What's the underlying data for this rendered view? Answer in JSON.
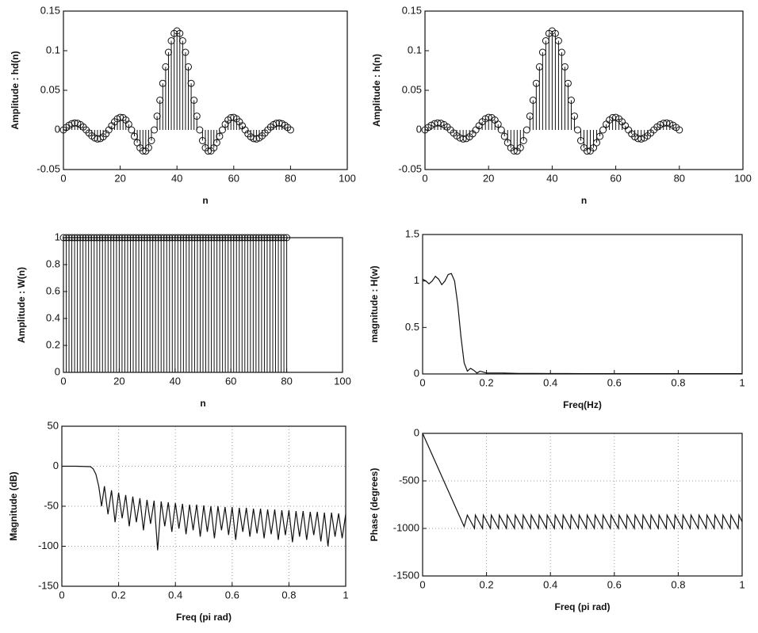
{
  "chart_data": [
    {
      "type": "stem",
      "xlabel": "n",
      "ylabel": "Amplitude : hd(n)",
      "color": "#111111",
      "x": [
        0,
        1,
        2,
        3,
        4,
        5,
        6,
        7,
        8,
        9,
        10,
        11,
        12,
        13,
        14,
        15,
        16,
        17,
        18,
        19,
        20,
        21,
        22,
        23,
        24,
        25,
        26,
        27,
        28,
        29,
        30,
        31,
        32,
        33,
        34,
        35,
        36,
        37,
        38,
        39,
        40,
        41,
        42,
        43,
        44,
        45,
        46,
        47,
        48,
        49,
        50,
        51,
        52,
        53,
        54,
        55,
        56,
        57,
        58,
        59,
        60,
        61,
        62,
        63,
        64,
        65,
        66,
        67,
        68,
        69,
        70,
        71,
        72,
        73,
        74,
        75,
        76,
        77,
        78,
        79,
        80
      ],
      "values": [
        0,
        0.0031,
        0.0059,
        0.0079,
        0.0088,
        0.0084,
        0.0066,
        0.0037,
        0,
        -0.0039,
        -0.0075,
        -0.0101,
        -0.0114,
        -0.0109,
        -0.0087,
        -0.0049,
        0,
        0.0053,
        0.0102,
        0.014,
        0.0159,
        0.0155,
        0.0125,
        0.0072,
        0,
        -0.0081,
        -0.0161,
        -0.0226,
        -0.0265,
        -0.0267,
        -0.0225,
        -0.0135,
        0,
        0.0174,
        0.0375,
        0.0588,
        0.0796,
        0.098,
        0.1125,
        0.1218,
        0.125,
        0.1218,
        0.1125,
        0.098,
        0.0796,
        0.0588,
        0.0375,
        0.0174,
        0,
        -0.0135,
        -0.0225,
        -0.0267,
        -0.0265,
        -0.0226,
        -0.0161,
        -0.0081,
        0,
        0.0072,
        0.0125,
        0.0155,
        0.0159,
        0.014,
        0.0102,
        0.0053,
        0,
        -0.0049,
        -0.0087,
        -0.0109,
        -0.0114,
        -0.0101,
        -0.0075,
        -0.0039,
        0,
        0.0037,
        0.0066,
        0.0084,
        0.0088,
        0.0079,
        0.0059,
        0.0031,
        0
      ],
      "xlim": [
        0,
        100
      ],
      "ylim": [
        -0.05,
        0.15
      ],
      "xticks": [
        0,
        20,
        40,
        60,
        80,
        100
      ],
      "yticks": [
        -0.05,
        0,
        0.05,
        0.1,
        0.15
      ],
      "grid": false
    },
    {
      "type": "stem",
      "xlabel": "n",
      "ylabel": "Amplitude : h(n)",
      "color": "#111111",
      "x": [
        0,
        1,
        2,
        3,
        4,
        5,
        6,
        7,
        8,
        9,
        10,
        11,
        12,
        13,
        14,
        15,
        16,
        17,
        18,
        19,
        20,
        21,
        22,
        23,
        24,
        25,
        26,
        27,
        28,
        29,
        30,
        31,
        32,
        33,
        34,
        35,
        36,
        37,
        38,
        39,
        40,
        41,
        42,
        43,
        44,
        45,
        46,
        47,
        48,
        49,
        50,
        51,
        52,
        53,
        54,
        55,
        56,
        57,
        58,
        59,
        60,
        61,
        62,
        63,
        64,
        65,
        66,
        67,
        68,
        69,
        70,
        71,
        72,
        73,
        74,
        75,
        76,
        77,
        78,
        79,
        80
      ],
      "values": [
        0,
        0.0031,
        0.0059,
        0.0079,
        0.0088,
        0.0084,
        0.0066,
        0.0037,
        0,
        -0.0039,
        -0.0075,
        -0.0101,
        -0.0114,
        -0.0109,
        -0.0087,
        -0.0049,
        0,
        0.0053,
        0.0102,
        0.014,
        0.0159,
        0.0155,
        0.0125,
        0.0072,
        0,
        -0.0081,
        -0.0161,
        -0.0226,
        -0.0265,
        -0.0267,
        -0.0225,
        -0.0135,
        0,
        0.0174,
        0.0375,
        0.0588,
        0.0796,
        0.098,
        0.1125,
        0.1218,
        0.125,
        0.1218,
        0.1125,
        0.098,
        0.0796,
        0.0588,
        0.0375,
        0.0174,
        0,
        -0.0135,
        -0.0225,
        -0.0267,
        -0.0265,
        -0.0226,
        -0.0161,
        -0.0081,
        0,
        0.0072,
        0.0125,
        0.0155,
        0.0159,
        0.014,
        0.0102,
        0.0053,
        0,
        -0.0049,
        -0.0087,
        -0.0109,
        -0.0114,
        -0.0101,
        -0.0075,
        -0.0039,
        0,
        0.0037,
        0.0066,
        0.0084,
        0.0088,
        0.0079,
        0.0059,
        0.0031,
        0
      ],
      "xlim": [
        0,
        100
      ],
      "ylim": [
        -0.05,
        0.15
      ],
      "xticks": [
        0,
        20,
        40,
        60,
        80,
        100
      ],
      "yticks": [
        -0.05,
        0,
        0.05,
        0.1,
        0.15
      ],
      "grid": false
    },
    {
      "type": "stem",
      "xlabel": "n",
      "ylabel": "Amplitude : W(n)",
      "color": "#111111",
      "x": [
        0,
        1,
        2,
        3,
        4,
        5,
        6,
        7,
        8,
        9,
        10,
        11,
        12,
        13,
        14,
        15,
        16,
        17,
        18,
        19,
        20,
        21,
        22,
        23,
        24,
        25,
        26,
        27,
        28,
        29,
        30,
        31,
        32,
        33,
        34,
        35,
        36,
        37,
        38,
        39,
        40,
        41,
        42,
        43,
        44,
        45,
        46,
        47,
        48,
        49,
        50,
        51,
        52,
        53,
        54,
        55,
        56,
        57,
        58,
        59,
        60,
        61,
        62,
        63,
        64,
        65,
        66,
        67,
        68,
        69,
        70,
        71,
        72,
        73,
        74,
        75,
        76,
        77,
        78,
        79,
        80
      ],
      "values": [
        1,
        1,
        1,
        1,
        1,
        1,
        1,
        1,
        1,
        1,
        1,
        1,
        1,
        1,
        1,
        1,
        1,
        1,
        1,
        1,
        1,
        1,
        1,
        1,
        1,
        1,
        1,
        1,
        1,
        1,
        1,
        1,
        1,
        1,
        1,
        1,
        1,
        1,
        1,
        1,
        1,
        1,
        1,
        1,
        1,
        1,
        1,
        1,
        1,
        1,
        1,
        1,
        1,
        1,
        1,
        1,
        1,
        1,
        1,
        1,
        1,
        1,
        1,
        1,
        1,
        1,
        1,
        1,
        1,
        1,
        1,
        1,
        1,
        1,
        1,
        1,
        1,
        1,
        1,
        1,
        1
      ],
      "xlim": [
        0,
        100
      ],
      "ylim": [
        0,
        1
      ],
      "xticks": [
        0,
        20,
        40,
        60,
        80,
        100
      ],
      "yticks": [
        0,
        0.2,
        0.4,
        0.6,
        0.8,
        1
      ],
      "grid": false
    },
    {
      "type": "line",
      "xlabel": "Freq(Hz)",
      "ylabel": "magnitude : H(w)",
      "color": "#111111",
      "x": [
        0,
        0.01,
        0.02,
        0.03,
        0.04,
        0.05,
        0.06,
        0.07,
        0.08,
        0.09,
        0.1,
        0.11,
        0.12,
        0.13,
        0.14,
        0.15,
        0.16,
        0.17,
        0.18,
        0.19,
        0.2,
        0.25,
        0.3,
        0.35,
        0.4,
        0.45,
        0.5,
        0.55,
        0.6,
        0.65,
        0.7,
        0.75,
        0.8,
        0.85,
        0.9,
        0.95,
        1
      ],
      "values": [
        1.02,
        1.0,
        0.97,
        1.0,
        1.05,
        1.02,
        0.96,
        1.0,
        1.07,
        1.08,
        1.0,
        0.75,
        0.4,
        0.12,
        0.03,
        0.06,
        0.04,
        0.01,
        0.03,
        0.02,
        0.01,
        0.01,
        0.005,
        0.005,
        0.004,
        0.004,
        0.003,
        0.003,
        0.003,
        0.003,
        0.003,
        0.003,
        0.003,
        0.003,
        0.003,
        0.003,
        0.003
      ],
      "xlim": [
        0,
        1
      ],
      "ylim": [
        0,
        1.5
      ],
      "xticks": [
        0,
        0.2,
        0.4,
        0.6,
        0.8,
        1
      ],
      "yticks": [
        0,
        0.5,
        1,
        1.5
      ],
      "grid": false
    },
    {
      "type": "line",
      "xlabel": "Freq  (pi rad)",
      "ylabel": "Magnitude (dB)",
      "color": "#111111",
      "x": [
        0,
        0.05,
        0.1,
        0.11,
        0.12,
        0.13,
        0.14,
        0.15,
        0.1625,
        0.175,
        0.1875,
        0.2,
        0.2125,
        0.225,
        0.2375,
        0.25,
        0.2625,
        0.275,
        0.2875,
        0.3,
        0.3125,
        0.325,
        0.3375,
        0.35,
        0.3625,
        0.375,
        0.3875,
        0.4,
        0.4125,
        0.425,
        0.4375,
        0.45,
        0.4625,
        0.475,
        0.4875,
        0.5,
        0.5125,
        0.525,
        0.5375,
        0.55,
        0.5625,
        0.575,
        0.5875,
        0.6,
        0.6125,
        0.625,
        0.6375,
        0.65,
        0.6625,
        0.675,
        0.6875,
        0.7,
        0.7125,
        0.725,
        0.7375,
        0.75,
        0.7625,
        0.775,
        0.7875,
        0.8,
        0.8125,
        0.825,
        0.8375,
        0.85,
        0.8625,
        0.875,
        0.8875,
        0.9,
        0.9125,
        0.925,
        0.9375,
        0.95,
        0.9625,
        0.975,
        0.9875,
        1
      ],
      "values": [
        0,
        0,
        -0.5,
        -3,
        -10,
        -25,
        -50,
        -25,
        -60,
        -30,
        -70,
        -33,
        -65,
        -36,
        -75,
        -38,
        -70,
        -40,
        -80,
        -42,
        -72,
        -43,
        -105,
        -44,
        -75,
        -45,
        -82,
        -46,
        -78,
        -47,
        -85,
        -48,
        -80,
        -48,
        -88,
        -49,
        -82,
        -50,
        -90,
        -50,
        -80,
        -51,
        -86,
        -51,
        -92,
        -52,
        -82,
        -52,
        -88,
        -53,
        -84,
        -53,
        -90,
        -54,
        -85,
        -54,
        -92,
        -55,
        -86,
        -55,
        -95,
        -56,
        -88,
        -56,
        -92,
        -57,
        -86,
        -57,
        -94,
        -58,
        -100,
        -58,
        -88,
        -59,
        -90,
        -60
      ],
      "xlim": [
        0,
        1
      ],
      "ylim": [
        -150,
        50
      ],
      "xticks": [
        0,
        0.2,
        0.4,
        0.6,
        0.8,
        1
      ],
      "yticks": [
        -150,
        -100,
        -50,
        0,
        50
      ],
      "grid": true
    },
    {
      "type": "line",
      "xlabel": "Freq  (pi rad)",
      "ylabel": "Phase (degrees)",
      "color": "#111111",
      "x": [
        0,
        0.13,
        0.14,
        0.1625,
        0.165,
        0.1875,
        0.19,
        0.2125,
        0.215,
        0.2375,
        0.24,
        0.2625,
        0.265,
        0.2875,
        0.29,
        0.3125,
        0.315,
        0.3375,
        0.34,
        0.3625,
        0.365,
        0.3875,
        0.39,
        0.4125,
        0.415,
        0.4375,
        0.44,
        0.4625,
        0.465,
        0.4875,
        0.49,
        0.5125,
        0.515,
        0.5375,
        0.54,
        0.5625,
        0.565,
        0.5875,
        0.59,
        0.6125,
        0.615,
        0.6375,
        0.64,
        0.6625,
        0.665,
        0.6875,
        0.69,
        0.7125,
        0.715,
        0.7375,
        0.74,
        0.7625,
        0.765,
        0.7875,
        0.79,
        0.8125,
        0.815,
        0.8375,
        0.84,
        0.8625,
        0.865,
        0.8875,
        0.89,
        0.9125,
        0.915,
        0.9375,
        0.94,
        0.9625,
        0.965,
        0.9875,
        0.99,
        1
      ],
      "values": [
        0,
        -980,
        -860,
        -1000,
        -860,
        -1000,
        -860,
        -1000,
        -860,
        -1000,
        -860,
        -1000,
        -860,
        -1000,
        -860,
        -1000,
        -860,
        -1000,
        -860,
        -1000,
        -860,
        -1000,
        -860,
        -1000,
        -860,
        -1000,
        -860,
        -1000,
        -860,
        -1000,
        -860,
        -1000,
        -860,
        -1000,
        -860,
        -1000,
        -860,
        -1000,
        -860,
        -1000,
        -860,
        -1000,
        -860,
        -1000,
        -860,
        -1000,
        -860,
        -1000,
        -860,
        -1000,
        -860,
        -1000,
        -860,
        -1000,
        -860,
        -1000,
        -860,
        -1000,
        -860,
        -1000,
        -860,
        -1000,
        -860,
        -1000,
        -860,
        -1000,
        -860,
        -1000,
        -860,
        -1000,
        -860,
        -930
      ],
      "xlim": [
        0,
        1
      ],
      "ylim": [
        -1500,
        0
      ],
      "xticks": [
        0,
        0.2,
        0.4,
        0.6,
        0.8,
        1
      ],
      "yticks": [
        -1500,
        -1000,
        -500,
        0
      ],
      "grid": true
    }
  ]
}
